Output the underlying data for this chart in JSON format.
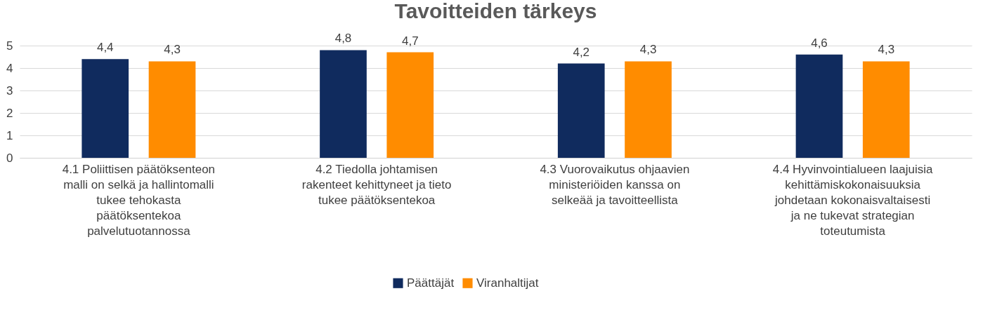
{
  "chart_data": {
    "type": "bar",
    "title": "Tavoitteiden tärkeys",
    "categories": [
      "4.1 Poliittisen päätöksenteon malli on selkä ja hallintomalli tukee tehokasta päätöksentekoa palvelutuotannossa",
      "4.2 Tiedolla johtamisen rakenteet kehittyneet ja tieto tukee päätöksentekoa",
      "4.3 Vuorovaikutus ohjaavien ministeriöiden kanssa on selkeää ja tavoitteellista",
      "4.4 Hyvinvointialueen laajuisia kehittämiskokonaisuuksia johdetaan kokonaisvaltaisesti ja ne tukevat strategian toteutumista"
    ],
    "series": [
      {
        "name": "Päättäjät",
        "color": "#102b5e",
        "values": [
          4.4,
          4.8,
          4.2,
          4.6
        ],
        "value_labels": [
          "4,4",
          "4,8",
          "4,2",
          "4,6"
        ]
      },
      {
        "name": "Viranhaltijat",
        "color": "#ff8c00",
        "values": [
          4.3,
          4.7,
          4.3,
          4.3
        ],
        "value_labels": [
          "4,3",
          "4,7",
          "4,3",
          "4,3"
        ]
      }
    ],
    "ylim": [
      0,
      5
    ],
    "yticks": [
      0,
      1,
      2,
      3,
      4,
      5
    ],
    "grid": "y",
    "legend": "bottom"
  }
}
